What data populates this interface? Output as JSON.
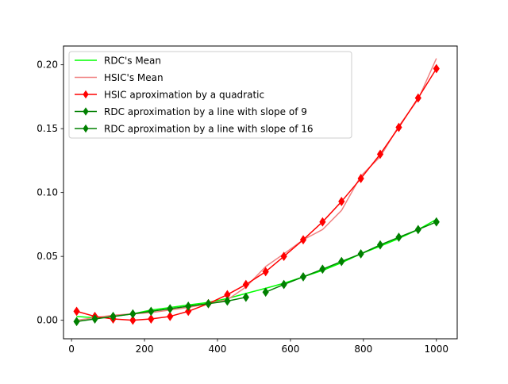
{
  "chart_data": {
    "type": "line",
    "title": "",
    "xlabel": "",
    "ylabel": "",
    "xlim": [
      -22,
      1057
    ],
    "ylim": [
      -0.0145,
      0.2147
    ],
    "grid": false,
    "legend_position": "top-left",
    "x_ticks": [
      {
        "value": 0,
        "label": "0"
      },
      {
        "value": 200,
        "label": "200"
      },
      {
        "value": 400,
        "label": "400"
      },
      {
        "value": 600,
        "label": "600"
      },
      {
        "value": 800,
        "label": "800"
      },
      {
        "value": 1000,
        "label": "1000"
      }
    ],
    "y_ticks": [
      {
        "value": 0.0,
        "label": "0.00"
      },
      {
        "value": 0.05,
        "label": "0.05"
      },
      {
        "value": 0.1,
        "label": "0.10"
      },
      {
        "value": 0.15,
        "label": "0.15"
      },
      {
        "value": 0.2,
        "label": "0.20"
      }
    ],
    "series": [
      {
        "name": "RDC's Mean",
        "color": "#00ff00",
        "opacity": 1,
        "marker": "none",
        "x": [
          14,
          64,
          114,
          168,
          218,
          270,
          320,
          375,
          427,
          478,
          532,
          582,
          635,
          688,
          740,
          793,
          846,
          897,
          950,
          1000
        ],
        "y": [
          0.003,
          0.002,
          0.003,
          0.005,
          0.008,
          0.01,
          0.012,
          0.014,
          0.017,
          0.021,
          0.025,
          0.029,
          0.034,
          0.039,
          0.045,
          0.052,
          0.058,
          0.064,
          0.071,
          0.079
        ]
      },
      {
        "name": "HSIC's Mean",
        "color": "#f08080",
        "opacity": 1,
        "marker": "none",
        "x": [
          14,
          64,
          114,
          168,
          218,
          270,
          320,
          375,
          427,
          478,
          532,
          582,
          635,
          688,
          740,
          793,
          846,
          897,
          950,
          1000
        ],
        "y": [
          0.0,
          0.002,
          0.004,
          0.005,
          0.006,
          0.008,
          0.01,
          0.013,
          0.016,
          0.026,
          0.042,
          0.052,
          0.063,
          0.071,
          0.086,
          0.113,
          0.128,
          0.152,
          0.173,
          0.205
        ]
      },
      {
        "name": "HSIC aproximation by a quadratic",
        "color": "#ff0000",
        "opacity": 1,
        "marker": "diamond",
        "x": [
          14,
          64,
          114,
          168,
          218,
          270,
          320,
          375,
          427,
          478,
          532,
          582,
          635,
          688,
          740,
          793,
          846,
          897,
          950,
          1000
        ],
        "y": [
          0.007,
          0.003,
          0.001,
          0.0,
          0.001,
          0.003,
          0.007,
          0.013,
          0.02,
          0.028,
          0.038,
          0.05,
          0.063,
          0.077,
          0.093,
          0.111,
          0.13,
          0.151,
          0.174,
          0.197
        ]
      },
      {
        "name": "RDC aproximation by a line with slope of 9",
        "color": "#008000",
        "opacity": 1,
        "marker": "diamond",
        "x": [
          14,
          64,
          114,
          168,
          218,
          270,
          320,
          375,
          427,
          478
        ],
        "y": [
          -0.001,
          0.001,
          0.003,
          0.005,
          0.007,
          0.009,
          0.011,
          0.013,
          0.015,
          0.018
        ]
      },
      {
        "name": "RDC aproximation by a line with slope of 16",
        "color": "#008000",
        "opacity": 1,
        "marker": "diamond",
        "x": [
          532,
          582,
          635,
          688,
          740,
          793,
          846,
          897,
          950,
          1000
        ],
        "y": [
          0.022,
          0.028,
          0.034,
          0.04,
          0.046,
          0.052,
          0.059,
          0.065,
          0.071,
          0.077
        ]
      }
    ]
  }
}
